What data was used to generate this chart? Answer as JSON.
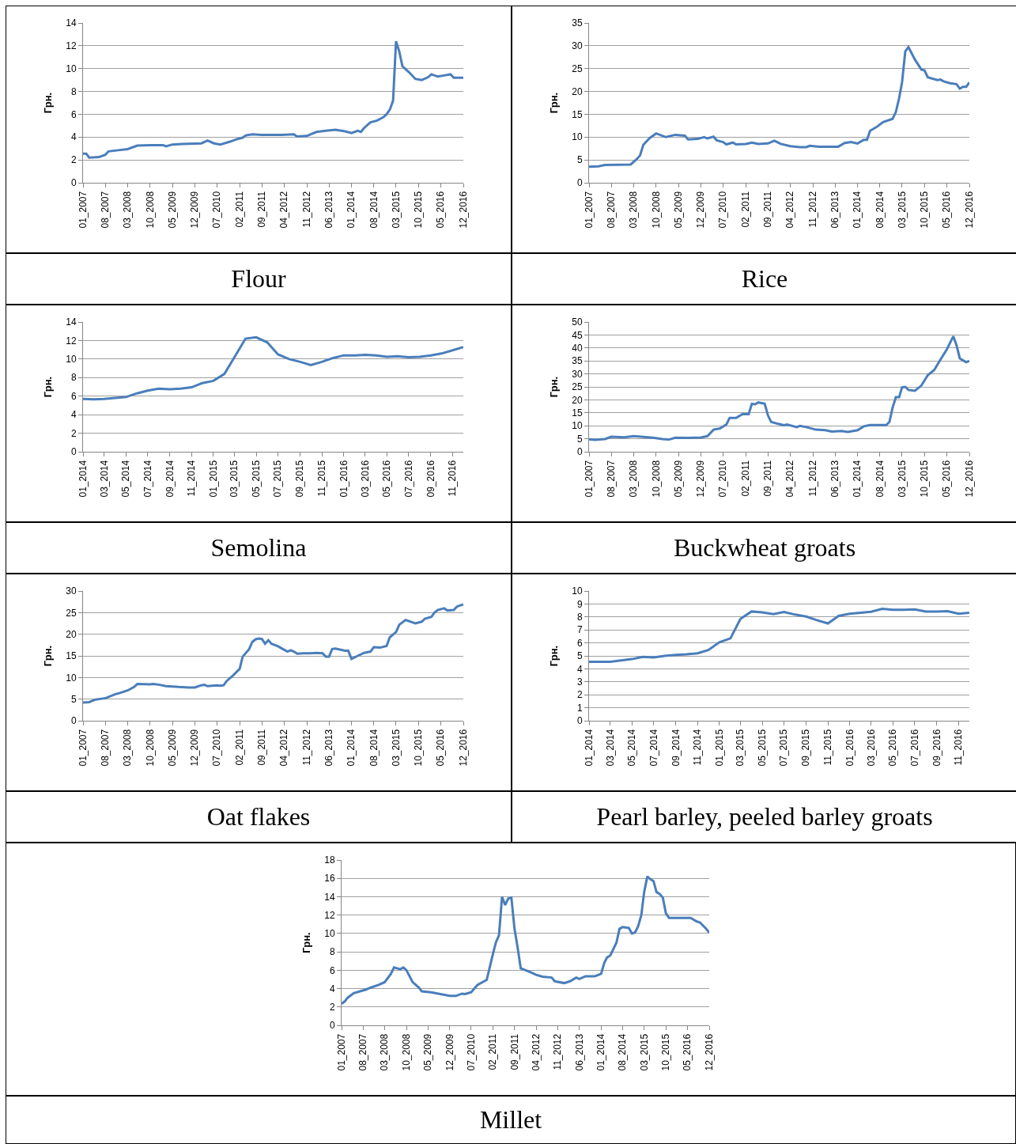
{
  "chart_data": [
    {
      "type": "line",
      "title": "Flour",
      "ylabel": "Грн.",
      "grid": "y",
      "x": [
        "2007-01",
        "2007-02",
        "2007-03",
        "2007-06",
        "2007-08",
        "2007-09",
        "2007-12",
        "2008-03",
        "2008-06",
        "2008-10",
        "2009-02",
        "2009-03",
        "2009-05",
        "2009-08",
        "2010-02",
        "2010-04",
        "2010-06",
        "2010-08",
        "2010-11",
        "2011-01",
        "2011-03",
        "2011-04",
        "2011-06",
        "2011-09",
        "2012-03",
        "2012-07",
        "2012-08",
        "2012-11",
        "2013-02",
        "2013-05",
        "2013-08",
        "2013-11",
        "2014-01",
        "2014-03",
        "2014-04",
        "2014-05",
        "2014-07",
        "2014-09",
        "2014-11",
        "2014-12",
        "2015-01",
        "2015-02",
        "2015-03",
        "2015-04",
        "2015-05",
        "2015-07",
        "2015-09",
        "2015-11",
        "2016-01",
        "2016-02",
        "2016-04",
        "2016-06",
        "2016-08",
        "2016-09",
        "2016-12"
      ],
      "series": [
        {
          "color": "#4a7ebb",
          "values": [
            2.55,
            2.55,
            2.2,
            2.25,
            2.45,
            2.75,
            2.85,
            2.95,
            3.25,
            3.3,
            3.3,
            3.2,
            3.35,
            3.4,
            3.45,
            3.7,
            3.45,
            3.35,
            3.6,
            3.8,
            3.95,
            4.15,
            4.25,
            4.2,
            4.2,
            4.25,
            4.05,
            4.1,
            4.45,
            4.55,
            4.65,
            4.5,
            4.35,
            4.55,
            4.45,
            4.8,
            5.3,
            5.45,
            5.75,
            6.0,
            6.4,
            7.2,
            12.4,
            11.5,
            10.2,
            9.7,
            9.1,
            9.0,
            9.25,
            9.5,
            9.3,
            9.4,
            9.5,
            9.2,
            9.2
          ]
        }
      ],
      "xlim": [
        "2007-01",
        "2016-12"
      ],
      "xticks": [
        {
          "value": "2007-01",
          "label": "01_2007"
        },
        {
          "value": "2007-08",
          "label": "08_2007"
        },
        {
          "value": "2008-03",
          "label": "03_2008"
        },
        {
          "value": "2008-10",
          "label": "10_2008"
        },
        {
          "value": "2009-05",
          "label": "05_2009"
        },
        {
          "value": "2009-12",
          "label": "12_2009"
        },
        {
          "value": "2010-07",
          "label": "07_2010"
        },
        {
          "value": "2011-02",
          "label": "02_2011"
        },
        {
          "value": "2011-09",
          "label": "09_2011"
        },
        {
          "value": "2012-04",
          "label": "04_2012"
        },
        {
          "value": "2012-11",
          "label": "11_2012"
        },
        {
          "value": "2013-06",
          "label": "06_2013"
        },
        {
          "value": "2014-01",
          "label": "01_2014"
        },
        {
          "value": "2014-08",
          "label": "08_2014"
        },
        {
          "value": "2015-03",
          "label": "03_2015"
        },
        {
          "value": "2015-10",
          "label": "10_2015"
        },
        {
          "value": "2016-05",
          "label": "05_2016"
        },
        {
          "value": "2016-12",
          "label": "12_2016"
        }
      ],
      "ylim": [
        0,
        14
      ],
      "yticks": [
        0,
        2,
        4,
        6,
        8,
        10,
        12,
        14
      ]
    },
    {
      "type": "line",
      "title": "Rice",
      "ylabel": "Грн.",
      "grid": "y",
      "x": [
        "2007-01",
        "2007-04",
        "2007-06",
        "2008-02",
        "2008-04",
        "2008-05",
        "2008-06",
        "2008-08",
        "2008-10",
        "2009-01",
        "2009-04",
        "2009-07",
        "2009-08",
        "2009-11",
        "2010-01",
        "2010-02",
        "2010-04",
        "2010-05",
        "2010-07",
        "2010-08",
        "2010-10",
        "2010-11",
        "2011-02",
        "2011-04",
        "2011-06",
        "2011-09",
        "2011-11",
        "2012-01",
        "2012-04",
        "2012-07",
        "2012-09",
        "2012-10",
        "2013-01",
        "2013-07",
        "2013-09",
        "2013-11",
        "2014-01",
        "2014-03",
        "2014-04",
        "2014-05",
        "2014-07",
        "2014-09",
        "2014-12",
        "2015-01",
        "2015-02",
        "2015-03",
        "2015-04",
        "2015-05",
        "2015-07",
        "2015-09",
        "2015-10",
        "2015-11",
        "2016-02",
        "2016-03",
        "2016-04",
        "2016-06",
        "2016-08",
        "2016-09",
        "2016-10",
        "2016-11",
        "2016-12"
      ],
      "series": [
        {
          "color": "#4a7ebb",
          "values": [
            3.5,
            3.6,
            3.9,
            4.0,
            5.2,
            6.0,
            8.3,
            9.8,
            10.8,
            10.0,
            10.5,
            10.3,
            9.5,
            9.6,
            10.0,
            9.7,
            10.1,
            9.3,
            8.9,
            8.4,
            8.8,
            8.4,
            8.5,
            8.8,
            8.5,
            8.6,
            9.2,
            8.5,
            8.0,
            7.8,
            7.8,
            8.1,
            7.9,
            7.9,
            8.7,
            8.9,
            8.6,
            9.4,
            9.4,
            11.4,
            12.2,
            13.3,
            14.0,
            15.5,
            18.5,
            22.0,
            28.8,
            29.7,
            27.0,
            24.8,
            24.6,
            23.1,
            22.5,
            22.6,
            22.2,
            21.8,
            21.6,
            20.6,
            21.0,
            21.0,
            22.0
          ]
        }
      ],
      "xlim": [
        "2007-01",
        "2016-12"
      ],
      "xticks": [
        {
          "value": "2007-01",
          "label": "01_2007"
        },
        {
          "value": "2007-08",
          "label": "08_2007"
        },
        {
          "value": "2008-03",
          "label": "03_2008"
        },
        {
          "value": "2008-10",
          "label": "10_2008"
        },
        {
          "value": "2009-05",
          "label": "05_2009"
        },
        {
          "value": "2009-12",
          "label": "12_2009"
        },
        {
          "value": "2010-07",
          "label": "07_2010"
        },
        {
          "value": "2011-02",
          "label": "02_2011"
        },
        {
          "value": "2011-09",
          "label": "09_2011"
        },
        {
          "value": "2012-04",
          "label": "04_2012"
        },
        {
          "value": "2012-11",
          "label": "11_2012"
        },
        {
          "value": "2013-06",
          "label": "06_2013"
        },
        {
          "value": "2014-01",
          "label": "01_2014"
        },
        {
          "value": "2014-08",
          "label": "08_2014"
        },
        {
          "value": "2015-03",
          "label": "03_2015"
        },
        {
          "value": "2015-10",
          "label": "10_2015"
        },
        {
          "value": "2016-05",
          "label": "05_2016"
        },
        {
          "value": "2016-12",
          "label": "12_2016"
        }
      ],
      "ylim": [
        0,
        35
      ],
      "yticks": [
        0,
        5,
        10,
        15,
        20,
        25,
        30,
        35
      ]
    },
    {
      "type": "line",
      "title": "Semolina",
      "ylabel": "Грн.",
      "grid": "y",
      "x": [
        "2014-01",
        "2014-02",
        "2014-03",
        "2014-04",
        "2014-05",
        "2014-06",
        "2014-07",
        "2014-08",
        "2014-09",
        "2014-10",
        "2014-11",
        "2014-12",
        "2015-01",
        "2015-02",
        "2015-03",
        "2015-04",
        "2015-05",
        "2015-06",
        "2015-07",
        "2015-08",
        "2015-09",
        "2015-10",
        "2015-11",
        "2015-12",
        "2016-01",
        "2016-02",
        "2016-03",
        "2016-04",
        "2016-05",
        "2016-06",
        "2016-07",
        "2016-08",
        "2016-09",
        "2016-10",
        "2016-11",
        "2016-12"
      ],
      "series": [
        {
          "color": "#4a7ebb",
          "values": [
            5.7,
            5.65,
            5.7,
            5.8,
            5.9,
            6.3,
            6.6,
            6.8,
            6.75,
            6.8,
            6.95,
            7.4,
            7.65,
            8.4,
            10.2,
            12.2,
            12.35,
            11.8,
            10.5,
            10.0,
            9.7,
            9.35,
            9.7,
            10.1,
            10.4,
            10.4,
            10.45,
            10.4,
            10.25,
            10.3,
            10.2,
            10.25,
            10.4,
            10.6,
            10.95,
            11.3
          ]
        }
      ],
      "xlim": [
        "2014-01",
        "2016-12"
      ],
      "xticks": [
        {
          "value": "2014-01",
          "label": "01_2014"
        },
        {
          "value": "2014-03",
          "label": "03_2014"
        },
        {
          "value": "2014-05",
          "label": "05_2014"
        },
        {
          "value": "2014-07",
          "label": "07_2014"
        },
        {
          "value": "2014-09",
          "label": "09_2014"
        },
        {
          "value": "2014-11",
          "label": "11_2014"
        },
        {
          "value": "2015-01",
          "label": "01_2015"
        },
        {
          "value": "2015-03",
          "label": "03_2015"
        },
        {
          "value": "2015-05",
          "label": "05_2015"
        },
        {
          "value": "2015-07",
          "label": "07_2015"
        },
        {
          "value": "2015-09",
          "label": "09_2015"
        },
        {
          "value": "2015-11",
          "label": "11_2015"
        },
        {
          "value": "2016-01",
          "label": "01_2016"
        },
        {
          "value": "2016-03",
          "label": "03_2016"
        },
        {
          "value": "2016-05",
          "label": "05_2016"
        },
        {
          "value": "2016-07",
          "label": "07_2016"
        },
        {
          "value": "2016-09",
          "label": "09_2016"
        },
        {
          "value": "2016-11",
          "label": "11_2016"
        }
      ],
      "ylim": [
        0,
        14
      ],
      "yticks": [
        0,
        2,
        4,
        6,
        8,
        10,
        12,
        14
      ]
    },
    {
      "type": "line",
      "title": "Buckwheat groats",
      "ylabel": "Грн.",
      "grid": "y",
      "x": [
        "2007-01",
        "2007-03",
        "2007-06",
        "2007-08",
        "2007-12",
        "2008-03",
        "2008-06",
        "2008-09",
        "2008-12",
        "2009-02",
        "2009-04",
        "2009-08",
        "2009-12",
        "2010-02",
        "2010-04",
        "2010-06",
        "2010-08",
        "2010-09",
        "2010-11",
        "2011-01",
        "2011-03",
        "2011-04",
        "2011-05",
        "2011-06",
        "2011-08",
        "2011-09",
        "2011-10",
        "2011-12",
        "2012-02",
        "2012-03",
        "2012-06",
        "2012-07",
        "2012-09",
        "2012-12",
        "2013-03",
        "2013-05",
        "2013-08",
        "2013-10",
        "2014-01",
        "2014-03",
        "2014-05",
        "2014-10",
        "2014-11",
        "2014-12",
        "2015-01",
        "2015-02",
        "2015-03",
        "2015-04",
        "2015-05",
        "2015-07",
        "2015-09",
        "2015-11",
        "2016-01",
        "2016-03",
        "2016-05",
        "2016-07",
        "2016-08",
        "2016-09",
        "2016-11",
        "2016-12"
      ],
      "series": [
        {
          "color": "#4a7ebb",
          "values": [
            4.8,
            4.6,
            4.9,
            5.8,
            5.6,
            6.0,
            5.7,
            5.4,
            4.9,
            4.7,
            5.4,
            5.3,
            5.5,
            6.0,
            8.5,
            9.0,
            10.5,
            13.0,
            13.0,
            14.5,
            14.5,
            18.5,
            18.3,
            19.0,
            18.5,
            14.0,
            11.5,
            10.8,
            10.2,
            10.5,
            9.5,
            10.0,
            9.5,
            8.5,
            8.3,
            7.8,
            8.0,
            7.6,
            8.3,
            9.8,
            10.3,
            10.3,
            11.5,
            17.0,
            21.0,
            21.0,
            24.8,
            25.0,
            23.8,
            23.5,
            25.5,
            29.5,
            31.5,
            35.5,
            39.5,
            44.5,
            41.0,
            36.0,
            34.5,
            35.0
          ]
        }
      ],
      "xlim": [
        "2007-01",
        "2016-12"
      ],
      "xticks": [
        {
          "value": "2007-01",
          "label": "01_2007"
        },
        {
          "value": "2007-08",
          "label": "08_2007"
        },
        {
          "value": "2008-03",
          "label": "03_2008"
        },
        {
          "value": "2008-10",
          "label": "10_2008"
        },
        {
          "value": "2009-05",
          "label": "05_2009"
        },
        {
          "value": "2009-12",
          "label": "12_2009"
        },
        {
          "value": "2010-07",
          "label": "07_2010"
        },
        {
          "value": "2011-02",
          "label": "02_2011"
        },
        {
          "value": "2011-09",
          "label": "09_2011"
        },
        {
          "value": "2012-04",
          "label": "04_2012"
        },
        {
          "value": "2012-11",
          "label": "11_2012"
        },
        {
          "value": "2013-06",
          "label": "06_2013"
        },
        {
          "value": "2014-01",
          "label": "01_2014"
        },
        {
          "value": "2014-08",
          "label": "08_2014"
        },
        {
          "value": "2015-03",
          "label": "03_2015"
        },
        {
          "value": "2015-10",
          "label": "10_2015"
        },
        {
          "value": "2016-05",
          "label": "05_2016"
        },
        {
          "value": "2016-12",
          "label": "12_2016"
        }
      ],
      "ylim": [
        0,
        50
      ],
      "yticks": [
        0,
        5,
        10,
        15,
        20,
        25,
        30,
        35,
        40,
        45,
        50
      ]
    },
    {
      "type": "line",
      "title": "Oat flakes",
      "ylabel": "Грн.",
      "grid": "y",
      "x": [
        "2007-01",
        "2007-03",
        "2007-05",
        "2007-07",
        "2007-08",
        "2007-11",
        "2007-12",
        "2008-03",
        "2008-05",
        "2008-06",
        "2008-10",
        "2008-11",
        "2009-01",
        "2009-03",
        "2009-05",
        "2009-07",
        "2009-10",
        "2009-12",
        "2010-02",
        "2010-03",
        "2010-04",
        "2010-07",
        "2010-08",
        "2010-09",
        "2010-10",
        "2010-12",
        "2011-02",
        "2011-03",
        "2011-05",
        "2011-06",
        "2011-07",
        "2011-08",
        "2011-09",
        "2011-10",
        "2011-11",
        "2011-12",
        "2012-02",
        "2012-03",
        "2012-05",
        "2012-06",
        "2012-07",
        "2012-08",
        "2012-10",
        "2012-12",
        "2013-02",
        "2013-04",
        "2013-05",
        "2013-06",
        "2013-07",
        "2013-08",
        "2013-11",
        "2013-12",
        "2014-01",
        "2014-03",
        "2014-05",
        "2014-07",
        "2014-08",
        "2014-10",
        "2014-12",
        "2015-01",
        "2015-03",
        "2015-04",
        "2015-06",
        "2015-09",
        "2015-11",
        "2015-12",
        "2016-02",
        "2016-03",
        "2016-04",
        "2016-06",
        "2016-07",
        "2016-09",
        "2016-10",
        "2016-12"
      ],
      "series": [
        {
          "color": "#4a7ebb",
          "values": [
            4.2,
            4.3,
            4.9,
            5.1,
            5.2,
            6.1,
            6.3,
            7.0,
            7.8,
            8.5,
            8.4,
            8.5,
            8.3,
            8.0,
            7.9,
            7.8,
            7.7,
            7.7,
            8.2,
            8.3,
            8.0,
            8.2,
            8.1,
            8.2,
            9.2,
            10.5,
            12.0,
            14.8,
            16.5,
            18.2,
            18.8,
            19.0,
            18.9,
            17.8,
            18.6,
            17.8,
            17.2,
            16.8,
            16.0,
            16.3,
            16.0,
            15.5,
            15.6,
            15.6,
            15.7,
            15.6,
            14.8,
            14.8,
            16.6,
            16.7,
            16.2,
            16.2,
            14.3,
            15.0,
            15.7,
            16.0,
            17.0,
            16.9,
            17.3,
            19.3,
            20.5,
            22.2,
            23.3,
            22.5,
            22.9,
            23.6,
            24.0,
            25.0,
            25.6,
            26.0,
            25.5,
            25.6,
            26.4,
            26.9
          ]
        }
      ],
      "xlim": [
        "2007-01",
        "2016-12"
      ],
      "xticks": [
        {
          "value": "2007-01",
          "label": "01_2007"
        },
        {
          "value": "2007-08",
          "label": "08_2007"
        },
        {
          "value": "2008-03",
          "label": "03_2008"
        },
        {
          "value": "2008-10",
          "label": "10_2008"
        },
        {
          "value": "2009-05",
          "label": "05_2009"
        },
        {
          "value": "2009-12",
          "label": "12_2009"
        },
        {
          "value": "2010-07",
          "label": "07_2010"
        },
        {
          "value": "2011-02",
          "label": "02_2011"
        },
        {
          "value": "2011-09",
          "label": "09_2011"
        },
        {
          "value": "2012-04",
          "label": "04_2012"
        },
        {
          "value": "2012-11",
          "label": "11_2012"
        },
        {
          "value": "2013-06",
          "label": "06_2013"
        },
        {
          "value": "2014-01",
          "label": "01_2014"
        },
        {
          "value": "2014-08",
          "label": "08_2014"
        },
        {
          "value": "2015-03",
          "label": "03_2015"
        },
        {
          "value": "2015-10",
          "label": "10_2015"
        },
        {
          "value": "2016-05",
          "label": "05_2016"
        },
        {
          "value": "2016-12",
          "label": "12_2016"
        }
      ],
      "ylim": [
        0,
        30
      ],
      "yticks": [
        0,
        5,
        10,
        15,
        20,
        25,
        30
      ]
    },
    {
      "type": "line",
      "title": "Pearl barley, peeled barley groats",
      "ylabel": "Грн.",
      "grid": "y",
      "x": [
        "2014-01",
        "2014-02",
        "2014-03",
        "2014-04",
        "2014-05",
        "2014-06",
        "2014-07",
        "2014-08",
        "2014-09",
        "2014-10",
        "2014-11",
        "2014-12",
        "2015-01",
        "2015-02",
        "2015-03",
        "2015-04",
        "2015-05",
        "2015-06",
        "2015-07",
        "2015-08",
        "2015-09",
        "2015-10",
        "2015-11",
        "2015-12",
        "2016-01",
        "2016-02",
        "2016-03",
        "2016-04",
        "2016-05",
        "2016-06",
        "2016-07",
        "2016-08",
        "2016-09",
        "2016-10",
        "2016-11",
        "2016-12"
      ],
      "series": [
        {
          "color": "#4a7ebb",
          "values": [
            4.55,
            4.55,
            4.55,
            4.65,
            4.75,
            4.92,
            4.88,
            5.0,
            5.07,
            5.12,
            5.2,
            5.45,
            6.05,
            6.35,
            7.85,
            8.42,
            8.35,
            8.22,
            8.38,
            8.18,
            8.03,
            7.75,
            7.5,
            8.08,
            8.25,
            8.33,
            8.4,
            8.62,
            8.55,
            8.55,
            8.58,
            8.42,
            8.42,
            8.45,
            8.25,
            8.33
          ]
        }
      ],
      "xlim": [
        "2014-01",
        "2016-12"
      ],
      "xticks": [
        {
          "value": "2014-01",
          "label": "01_2014"
        },
        {
          "value": "2014-03",
          "label": "03_2014"
        },
        {
          "value": "2014-05",
          "label": "05_2014"
        },
        {
          "value": "2014-07",
          "label": "07_2014"
        },
        {
          "value": "2014-09",
          "label": "09_2014"
        },
        {
          "value": "2014-11",
          "label": "11_2014"
        },
        {
          "value": "2015-01",
          "label": "01_2015"
        },
        {
          "value": "2015-03",
          "label": "03_2015"
        },
        {
          "value": "2015-05",
          "label": "05_2015"
        },
        {
          "value": "2015-07",
          "label": "07_2015"
        },
        {
          "value": "2015-09",
          "label": "09_2015"
        },
        {
          "value": "2015-11",
          "label": "11_2015"
        },
        {
          "value": "2016-01",
          "label": "01_2016"
        },
        {
          "value": "2016-03",
          "label": "03_2016"
        },
        {
          "value": "2016-05",
          "label": "05_2016"
        },
        {
          "value": "2016-07",
          "label": "07_2016"
        },
        {
          "value": "2016-09",
          "label": "09_2016"
        },
        {
          "value": "2016-11",
          "label": "11_2016"
        }
      ],
      "ylim": [
        0,
        10
      ],
      "yticks": [
        0,
        1,
        2,
        3,
        4,
        5,
        6,
        7,
        8,
        9,
        10
      ]
    },
    {
      "type": "line",
      "title": "Millet",
      "ylabel": "Грн.",
      "grid": "y",
      "x": [
        "2007-01",
        "2007-02",
        "2007-03",
        "2007-05",
        "2007-07",
        "2007-09",
        "2007-10",
        "2008-01",
        "2008-03",
        "2008-05",
        "2008-06",
        "2008-08",
        "2008-09",
        "2008-10",
        "2008-12",
        "2009-02",
        "2009-03",
        "2009-06",
        "2009-09",
        "2009-12",
        "2010-02",
        "2010-04",
        "2010-05",
        "2010-07",
        "2010-09",
        "2010-12",
        "2011-02",
        "2011-03",
        "2011-04",
        "2011-05",
        "2011-06",
        "2011-07",
        "2011-08",
        "2011-09",
        "2011-10",
        "2011-11",
        "2012-02",
        "2012-04",
        "2012-06",
        "2012-09",
        "2012-10",
        "2013-01",
        "2013-03",
        "2013-05",
        "2013-06",
        "2013-08",
        "2013-11",
        "2014-01",
        "2014-02",
        "2014-03",
        "2014-04",
        "2014-06",
        "2014-07",
        "2014-08",
        "2014-10",
        "2014-11",
        "2014-12",
        "2015-01",
        "2015-02",
        "2015-03",
        "2015-04",
        "2015-05",
        "2015-06",
        "2015-07",
        "2015-08",
        "2015-09",
        "2015-10",
        "2015-11",
        "2016-05",
        "2016-06",
        "2016-08",
        "2016-09",
        "2016-11",
        "2016-12"
      ],
      "series": [
        {
          "color": "#4a7ebb",
          "values": [
            2.35,
            2.6,
            3.0,
            3.5,
            3.7,
            3.9,
            4.05,
            4.4,
            4.7,
            5.6,
            6.3,
            6.1,
            6.3,
            6.0,
            4.7,
            4.1,
            3.7,
            3.6,
            3.4,
            3.2,
            3.2,
            3.45,
            3.4,
            3.6,
            4.4,
            4.95,
            7.8,
            9.0,
            9.8,
            14.0,
            13.1,
            13.8,
            13.9,
            10.5,
            8.5,
            6.2,
            5.8,
            5.5,
            5.3,
            5.2,
            4.8,
            4.6,
            4.8,
            5.2,
            5.05,
            5.35,
            5.35,
            5.6,
            6.8,
            7.4,
            7.6,
            9.0,
            10.5,
            10.7,
            10.6,
            10.0,
            10.1,
            10.8,
            12.0,
            14.5,
            16.2,
            15.9,
            15.7,
            14.5,
            14.3,
            13.9,
            12.2,
            11.7,
            11.7,
            11.7,
            11.3,
            11.2,
            10.5,
            10.1
          ]
        }
      ],
      "xlim": [
        "2007-01",
        "2016-12"
      ],
      "xticks": [
        {
          "value": "2007-01",
          "label": "01_2007"
        },
        {
          "value": "2007-08",
          "label": "08_2007"
        },
        {
          "value": "2008-03",
          "label": "03_2008"
        },
        {
          "value": "2008-10",
          "label": "10_2008"
        },
        {
          "value": "2009-05",
          "label": "05_2009"
        },
        {
          "value": "2009-12",
          "label": "12_2009"
        },
        {
          "value": "2010-07",
          "label": "07_2010"
        },
        {
          "value": "2011-02",
          "label": "02_2011"
        },
        {
          "value": "2011-09",
          "label": "09_2011"
        },
        {
          "value": "2012-04",
          "label": "04_2012"
        },
        {
          "value": "2012-11",
          "label": "11_2012"
        },
        {
          "value": "2013-06",
          "label": "06_2013"
        },
        {
          "value": "2014-01",
          "label": "01_2014"
        },
        {
          "value": "2014-08",
          "label": "08_2014"
        },
        {
          "value": "2015-03",
          "label": "03_2015"
        },
        {
          "value": "2015-10",
          "label": "10_2015"
        },
        {
          "value": "2016-05",
          "label": "05_2016"
        },
        {
          "value": "2016-12",
          "label": "12_2016"
        }
      ],
      "ylim": [
        0,
        18
      ],
      "yticks": [
        0,
        2,
        4,
        6,
        8,
        10,
        12,
        14,
        16,
        18
      ]
    }
  ]
}
